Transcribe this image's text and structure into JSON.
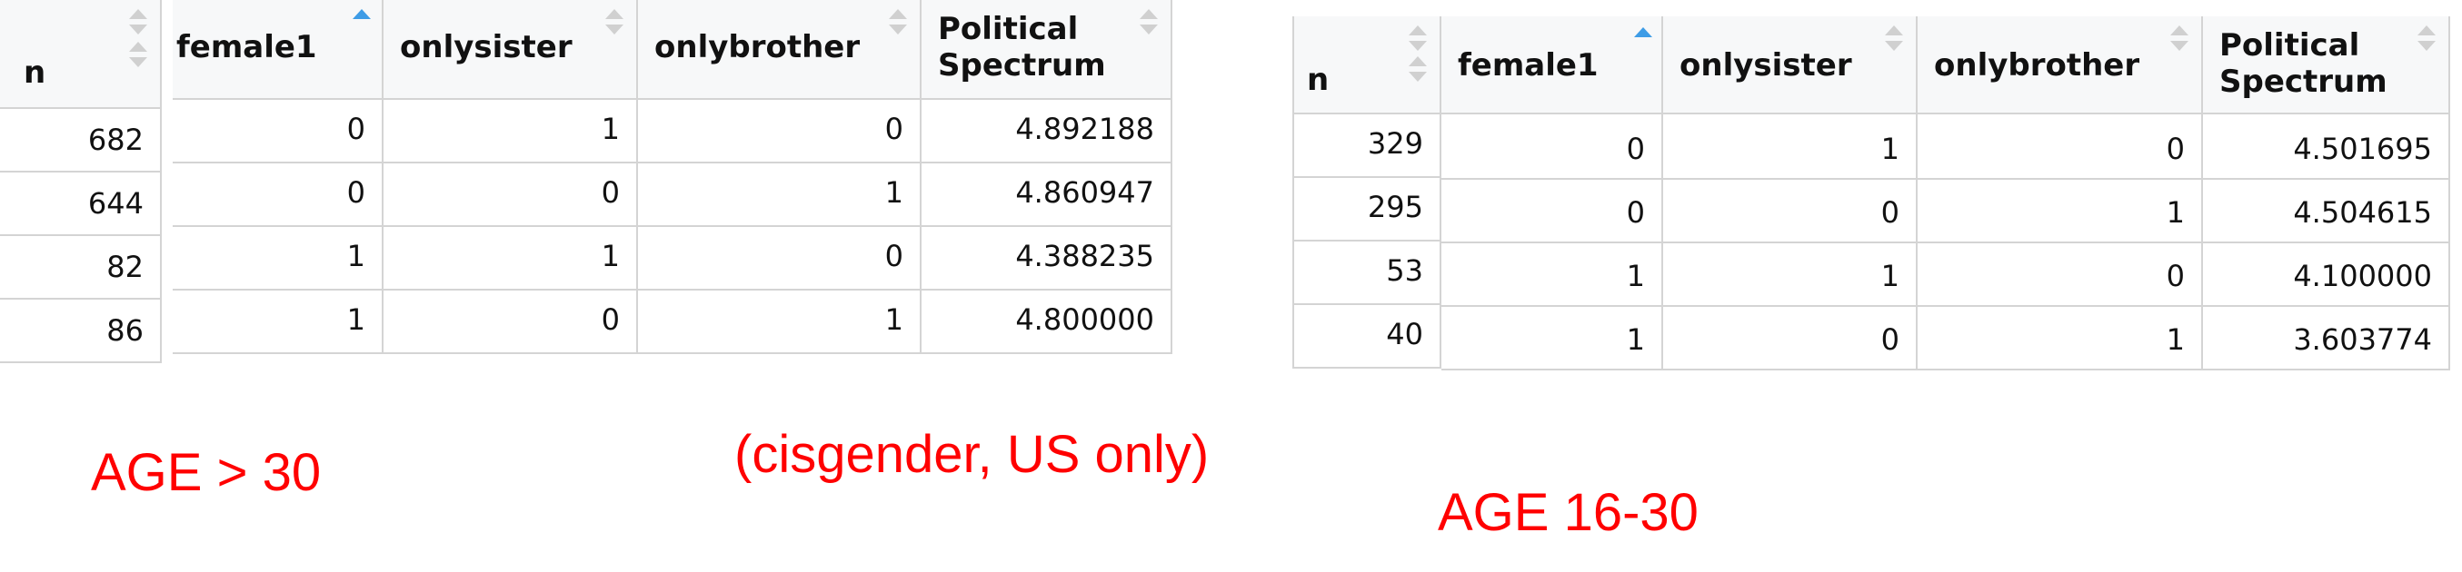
{
  "left_table": {
    "headers": {
      "n": "n",
      "female1": "female1",
      "onlysister": "onlysister",
      "onlybrother": "onlybrother",
      "political_1": "Political",
      "political_2": "Spectrum"
    },
    "rows": [
      {
        "n": "682",
        "female1": "0",
        "onlysister": "1",
        "onlybrother": "0",
        "political": "4.892188"
      },
      {
        "n": "644",
        "female1": "0",
        "onlysister": "0",
        "onlybrother": "1",
        "political": "4.860947"
      },
      {
        "n": "82",
        "female1": "1",
        "onlysister": "1",
        "onlybrother": "0",
        "political": "4.388235"
      },
      {
        "n": "86",
        "female1": "1",
        "onlysister": "0",
        "onlybrother": "1",
        "political": "4.800000"
      }
    ]
  },
  "right_table": {
    "headers": {
      "n": "n",
      "female1": "female1",
      "onlysister": "onlysister",
      "onlybrother": "onlybrother",
      "political_1": "Political",
      "political_2": "Spectrum"
    },
    "rows": [
      {
        "n": "329",
        "female1": "0",
        "onlysister": "1",
        "onlybrother": "0",
        "political": "4.501695"
      },
      {
        "n": "295",
        "female1": "0",
        "onlysister": "0",
        "onlybrother": "1",
        "political": "4.504615"
      },
      {
        "n": "53",
        "female1": "1",
        "onlysister": "1",
        "onlybrother": "0",
        "political": "4.100000"
      },
      {
        "n": "40",
        "female1": "1",
        "onlysister": "0",
        "onlybrother": "1",
        "political": "3.603774"
      }
    ]
  },
  "labels": {
    "age_over_30": "AGE > 30",
    "subset_note": "(cisgender, US only)",
    "age_16_30": "AGE 16-30"
  },
  "colors": {
    "annotation_red": "#ff0000",
    "sort_active": "#3e9ce6",
    "sort_inactive": "#d0d0d0",
    "header_bg": "#f7f8f9",
    "border": "#d4d4d4"
  }
}
